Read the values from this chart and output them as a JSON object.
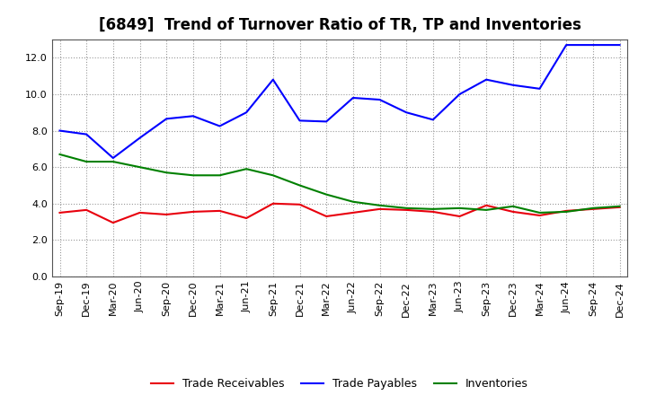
{
  "title": "[6849]  Trend of Turnover Ratio of TR, TP and Inventories",
  "x_labels": [
    "Sep-19",
    "Dec-19",
    "Mar-20",
    "Jun-20",
    "Sep-20",
    "Dec-20",
    "Mar-21",
    "Jun-21",
    "Sep-21",
    "Dec-21",
    "Mar-22",
    "Jun-22",
    "Sep-22",
    "Dec-22",
    "Mar-23",
    "Jun-23",
    "Sep-23",
    "Dec-23",
    "Mar-24",
    "Jun-24",
    "Sep-24",
    "Dec-24"
  ],
  "trade_receivables": [
    3.5,
    3.65,
    2.95,
    3.5,
    3.4,
    3.55,
    3.6,
    3.2,
    4.0,
    3.95,
    3.3,
    3.5,
    3.7,
    3.65,
    3.55,
    3.3,
    3.9,
    3.55,
    3.35,
    3.6,
    3.7,
    3.8
  ],
  "trade_payables": [
    8.0,
    7.8,
    6.5,
    7.6,
    8.65,
    8.8,
    8.25,
    9.0,
    10.8,
    8.55,
    8.5,
    9.8,
    9.7,
    9.0,
    8.6,
    10.0,
    10.8,
    10.5,
    10.3,
    12.7,
    12.7,
    12.7
  ],
  "inventories": [
    6.7,
    6.3,
    6.3,
    6.0,
    5.7,
    5.55,
    5.55,
    5.9,
    5.55,
    5.0,
    4.5,
    4.1,
    3.9,
    3.75,
    3.7,
    3.75,
    3.65,
    3.85,
    3.5,
    3.55,
    3.75,
    3.85
  ],
  "ylim": [
    0.0,
    13.0
  ],
  "yticks": [
    0.0,
    2.0,
    4.0,
    6.0,
    8.0,
    10.0,
    12.0
  ],
  "tr_color": "#e8000d",
  "tp_color": "#0000ff",
  "inv_color": "#008000",
  "legend_labels": [
    "Trade Receivables",
    "Trade Payables",
    "Inventories"
  ],
  "bg_color": "#ffffff",
  "grid_color": "#999999",
  "title_fontsize": 12,
  "tick_fontsize": 8,
  "legend_fontsize": 9
}
